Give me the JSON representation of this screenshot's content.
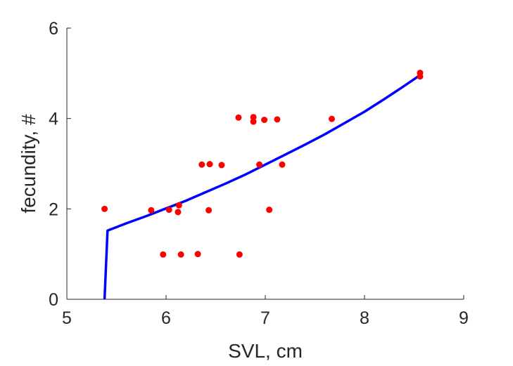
{
  "chart_data": {
    "type": "scatter",
    "title": "",
    "xlabel": "SVL, cm",
    "ylabel": "fecundity, #",
    "xlim": [
      5,
      9
    ],
    "ylim": [
      0,
      6
    ],
    "xticks": [
      5,
      6,
      7,
      8,
      9
    ],
    "yticks": [
      0,
      2,
      4,
      6
    ],
    "xtick_labels": [
      "5",
      "6",
      "7",
      "8",
      "9"
    ],
    "ytick_labels": [
      "0",
      "2",
      "4",
      "6"
    ],
    "grid": false,
    "series": [
      {
        "kind": "scatter",
        "color": "#ff0000",
        "points": [
          [
            5.38,
            2.0
          ],
          [
            5.85,
            1.97
          ],
          [
            6.03,
            1.98
          ],
          [
            6.12,
            1.93
          ],
          [
            6.13,
            2.08
          ],
          [
            5.97,
            0.99
          ],
          [
            6.15,
            0.99
          ],
          [
            6.32,
            1.0
          ],
          [
            6.43,
            1.97
          ],
          [
            6.36,
            2.98
          ],
          [
            6.44,
            2.99
          ],
          [
            6.56,
            2.97
          ],
          [
            6.73,
            4.02
          ],
          [
            6.74,
            0.99
          ],
          [
            6.88,
            4.03
          ],
          [
            6.88,
            3.93
          ],
          [
            6.94,
            2.98
          ],
          [
            6.99,
            3.97
          ],
          [
            7.04,
            1.98
          ],
          [
            7.12,
            3.98
          ],
          [
            7.17,
            2.98
          ],
          [
            7.67,
            3.99
          ],
          [
            8.56,
            5.01
          ],
          [
            8.56,
            4.93
          ]
        ]
      },
      {
        "kind": "line",
        "color": "#0000ff",
        "points": [
          [
            5.38,
            0.0
          ],
          [
            5.41,
            1.52
          ],
          [
            5.6,
            1.68
          ],
          [
            5.8,
            1.84
          ],
          [
            6.0,
            2.01
          ],
          [
            6.2,
            2.18
          ],
          [
            6.4,
            2.37
          ],
          [
            6.6,
            2.56
          ],
          [
            6.8,
            2.76
          ],
          [
            7.0,
            2.98
          ],
          [
            7.2,
            3.2
          ],
          [
            7.4,
            3.42
          ],
          [
            7.6,
            3.65
          ],
          [
            7.8,
            3.9
          ],
          [
            8.0,
            4.15
          ],
          [
            8.2,
            4.43
          ],
          [
            8.4,
            4.72
          ],
          [
            8.56,
            4.96
          ]
        ]
      }
    ]
  }
}
